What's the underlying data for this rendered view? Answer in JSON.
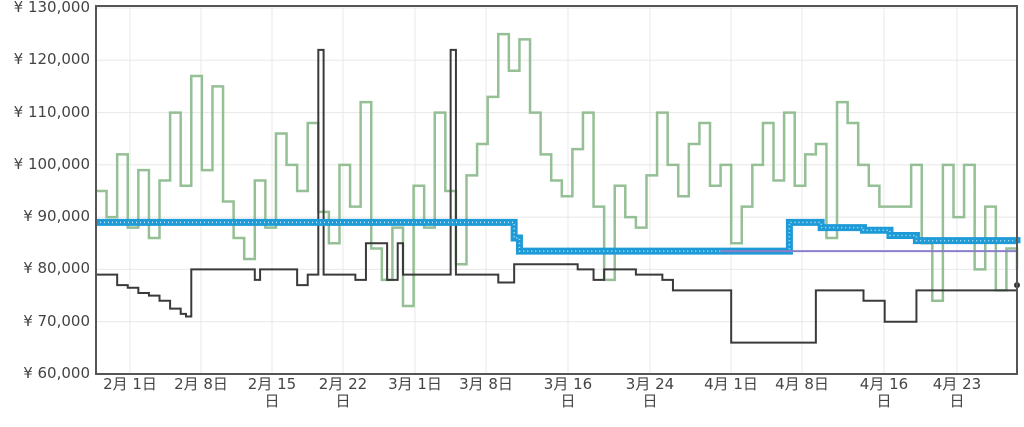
{
  "chart_data": {
    "type": "line",
    "title": "",
    "xlabel": "",
    "ylabel": "",
    "ylim": [
      60000,
      130000
    ],
    "y_ticks": [
      "¥ 60,000",
      "¥ 70,000",
      "¥ 80,000",
      "¥ 90,000",
      "¥ 100,000",
      "¥ 110,000",
      "¥ 120,000",
      "¥ 130,000"
    ],
    "x_ticks": [
      {
        "line1": "2月 1日",
        "line2": ""
      },
      {
        "line1": "2月 8日",
        "line2": ""
      },
      {
        "line1": "2月 15",
        "line2": "日"
      },
      {
        "line1": "2月 22",
        "line2": "日"
      },
      {
        "line1": "3月 1日",
        "line2": ""
      },
      {
        "line1": "3月 8日",
        "line2": ""
      },
      {
        "line1": "3月 16",
        "line2": "日"
      },
      {
        "line1": "3月 24",
        "line2": "日"
      },
      {
        "line1": "4月 1日",
        "line2": ""
      },
      {
        "line1": "4月 8日",
        "line2": ""
      },
      {
        "line1": "4月 16",
        "line2": "日"
      },
      {
        "line1": "4月 23",
        "line2": "日"
      }
    ],
    "grid": true,
    "legend": "none",
    "colors": {
      "used_price": "#8fbc8f",
      "new_price": "#3a3a3a",
      "amazon_price": "#1e9bd7",
      "list_price": "#8c7fc9",
      "grid": "#e8e8e8",
      "axis": "#555555"
    },
    "series": [
      {
        "name": "green-volatile-price",
        "color": "#8fbc8f",
        "description": "Highly volatile series oscillating roughly between ¥70,000 and ¥126,000",
        "points_approx": [
          [
            0,
            95000
          ],
          [
            2,
            90000
          ],
          [
            4,
            102000
          ],
          [
            6,
            88000
          ],
          [
            8,
            99000
          ],
          [
            10,
            86000
          ],
          [
            12,
            97000
          ],
          [
            14,
            110000
          ],
          [
            16,
            96000
          ],
          [
            18,
            117000
          ],
          [
            20,
            99000
          ],
          [
            22,
            115000
          ],
          [
            24,
            93000
          ],
          [
            26,
            86000
          ],
          [
            28,
            82000
          ],
          [
            30,
            97000
          ],
          [
            32,
            88000
          ],
          [
            34,
            106000
          ],
          [
            36,
            100000
          ],
          [
            38,
            95000
          ],
          [
            40,
            108000
          ],
          [
            42,
            91000
          ],
          [
            44,
            85000
          ],
          [
            46,
            100000
          ],
          [
            48,
            92000
          ],
          [
            50,
            112000
          ],
          [
            52,
            84000
          ],
          [
            54,
            78000
          ],
          [
            56,
            88000
          ],
          [
            58,
            73000
          ],
          [
            60,
            96000
          ],
          [
            62,
            88000
          ],
          [
            64,
            110000
          ],
          [
            66,
            95000
          ],
          [
            68,
            81000
          ],
          [
            70,
            98000
          ],
          [
            72,
            104000
          ],
          [
            74,
            113000
          ],
          [
            76,
            125000
          ],
          [
            78,
            118000
          ],
          [
            80,
            124000
          ],
          [
            82,
            110000
          ],
          [
            84,
            102000
          ],
          [
            86,
            97000
          ],
          [
            88,
            94000
          ],
          [
            90,
            103000
          ],
          [
            92,
            110000
          ],
          [
            94,
            92000
          ],
          [
            96,
            78000
          ],
          [
            98,
            96000
          ],
          [
            100,
            90000
          ],
          [
            102,
            88000
          ],
          [
            104,
            98000
          ],
          [
            106,
            110000
          ],
          [
            108,
            100000
          ],
          [
            110,
            94000
          ],
          [
            112,
            104000
          ],
          [
            114,
            108000
          ],
          [
            116,
            96000
          ],
          [
            118,
            100000
          ],
          [
            120,
            85000
          ],
          [
            122,
            92000
          ],
          [
            124,
            100000
          ],
          [
            126,
            108000
          ],
          [
            128,
            97000
          ],
          [
            130,
            110000
          ],
          [
            132,
            96000
          ],
          [
            134,
            102000
          ],
          [
            136,
            104000
          ],
          [
            138,
            86000
          ],
          [
            140,
            112000
          ],
          [
            142,
            108000
          ],
          [
            144,
            100000
          ],
          [
            146,
            96000
          ],
          [
            148,
            92000
          ],
          [
            150,
            92000
          ],
          [
            152,
            92000
          ],
          [
            154,
            100000
          ],
          [
            156,
            85000
          ],
          [
            158,
            74000
          ],
          [
            160,
            100000
          ],
          [
            162,
            90000
          ],
          [
            164,
            100000
          ],
          [
            166,
            80000
          ],
          [
            168,
            92000
          ],
          [
            170,
            76000
          ],
          [
            172,
            84000
          ],
          [
            174,
            80000
          ]
        ]
      },
      {
        "name": "black-step-price",
        "color": "#3a3a3a",
        "points_approx": [
          [
            0,
            79000
          ],
          [
            4,
            77000
          ],
          [
            6,
            76500
          ],
          [
            8,
            75500
          ],
          [
            10,
            75000
          ],
          [
            12,
            74000
          ],
          [
            14,
            72500
          ],
          [
            16,
            71500
          ],
          [
            17,
            71000
          ],
          [
            18,
            80000
          ],
          [
            30,
            78000
          ],
          [
            31,
            80000
          ],
          [
            38,
            77000
          ],
          [
            40,
            79000
          ],
          [
            42,
            122000
          ],
          [
            43,
            79000
          ],
          [
            49,
            78000
          ],
          [
            51,
            85000
          ],
          [
            55,
            78000
          ],
          [
            57,
            85000
          ],
          [
            58,
            79000
          ],
          [
            66,
            79000
          ],
          [
            67,
            122000
          ],
          [
            68,
            79000
          ],
          [
            76,
            77500
          ],
          [
            79,
            81000
          ],
          [
            91,
            80000
          ],
          [
            94,
            78000
          ],
          [
            96,
            80000
          ],
          [
            102,
            79000
          ],
          [
            107,
            78000
          ],
          [
            109,
            76000
          ],
          [
            120,
            66000
          ],
          [
            136,
            76000
          ],
          [
            145,
            74000
          ],
          [
            149,
            70000
          ],
          [
            155,
            76000
          ],
          [
            174,
            77000
          ]
        ]
      },
      {
        "name": "blue-marker-price",
        "color": "#1e9bd7",
        "points_approx": [
          [
            0,
            89000
          ],
          [
            78,
            89000
          ],
          [
            79,
            86000
          ],
          [
            80,
            83500
          ],
          [
            130,
            83500
          ],
          [
            131,
            89000
          ],
          [
            136,
            89000
          ],
          [
            137,
            88000
          ],
          [
            145,
            87500
          ],
          [
            150,
            86500
          ],
          [
            155,
            85500
          ],
          [
            174,
            85000
          ]
        ]
      },
      {
        "name": "purple-flat-price",
        "color": "#8c7fc9",
        "points_approx": [
          [
            118,
            83500
          ],
          [
            174,
            83500
          ]
        ]
      }
    ]
  }
}
